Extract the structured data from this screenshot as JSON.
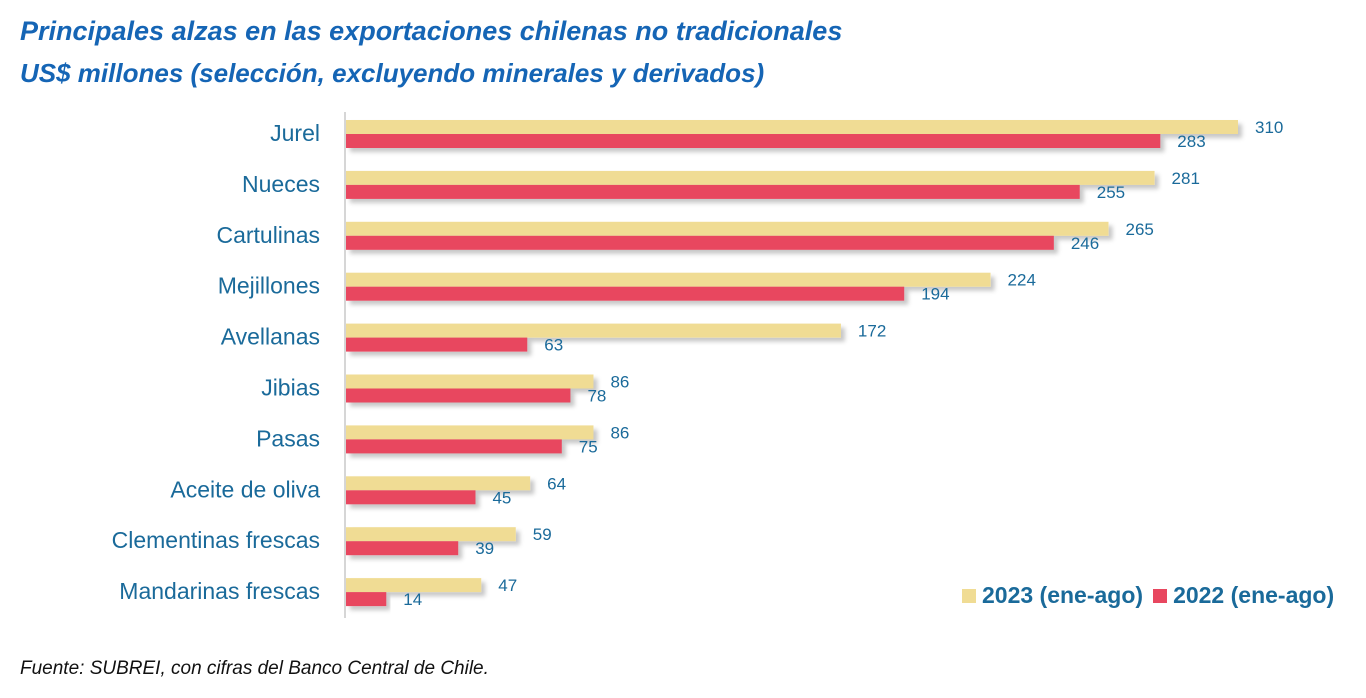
{
  "title": "Principales alzas en las exportaciones chilenas no tradicionales",
  "subtitle": "US$ millones (selección, excluyendo minerales y derivados)",
  "source": "Fuente: SUBREI, con cifras del Banco Central de Chile.",
  "colors": {
    "series_2023": "#f0dc94",
    "series_2022": "#e8475f",
    "text": "#1a6a9a",
    "title": "#1565b5"
  },
  "chart_data": {
    "type": "bar",
    "orientation": "horizontal",
    "categories": [
      "Jurel",
      "Nueces",
      "Cartulinas",
      "Mejillones",
      "Avellanas",
      "Jibias",
      "Pasas",
      "Aceite de oliva",
      "Clementinas frescas",
      "Mandarinas frescas"
    ],
    "series": [
      {
        "name": "2023 (ene-ago)",
        "values": [
          310,
          281,
          265,
          224,
          172,
          86,
          86,
          64,
          59,
          47
        ]
      },
      {
        "name": "2022 (ene-ago)",
        "values": [
          283,
          255,
          246,
          194,
          63,
          78,
          75,
          45,
          39,
          14
        ]
      }
    ],
    "xlim": [
      0,
      310
    ],
    "grid": false,
    "legend_position": "bottom-right"
  }
}
